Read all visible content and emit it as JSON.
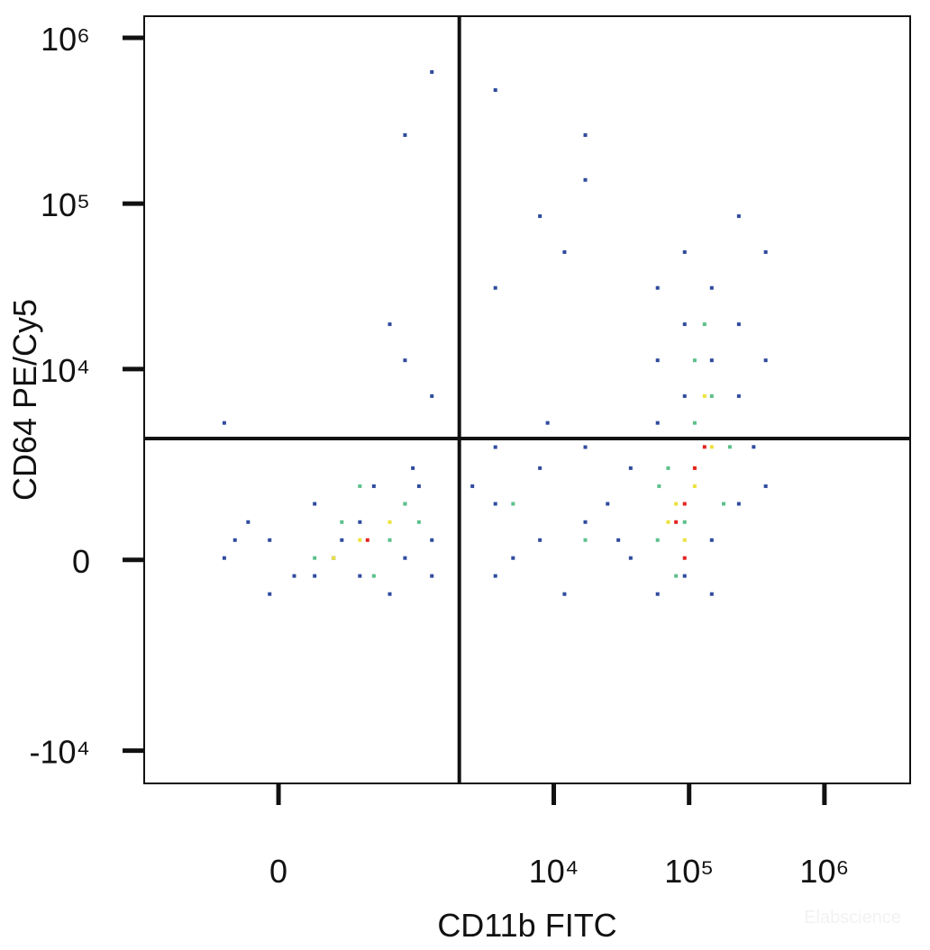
{
  "chart_data": {
    "type": "scatter",
    "xlabel": "CD11b FITC",
    "ylabel": "CD64 PE/Cy5",
    "watermark": "Elabscience",
    "xscale": "biexponential",
    "yscale": "biexponential",
    "xlim": [
      -900,
      4300000
    ],
    "ylim": [
      -15800,
      1350000
    ],
    "xticks": [
      0,
      {
        "value": 10000,
        "label": "10⁴"
      },
      {
        "value": 100000,
        "label": "10⁵"
      },
      {
        "value": 1000000,
        "label": "10⁶"
      }
    ],
    "yticks": [
      {
        "value": -10000,
        "label": "-10⁴"
      },
      0,
      {
        "value": 10000,
        "label": "10⁴"
      },
      {
        "value": 100000,
        "label": "10⁵"
      },
      {
        "value": 1000000,
        "label": "10⁶"
      }
    ],
    "quadrant": {
      "x": 2000,
      "y": 3700,
      "color": "#111111"
    },
    "series": [
      {
        "color": "#2f4b9e",
        "x": [
          -196,
          -28,
          121,
          346,
          785,
          1250,
          121,
          -28,
          346,
          785,
          240,
          600,
          1000,
          -100,
          50,
          1250,
          900,
          450,
          200,
          -150,
          3700,
          7900,
          3700,
          17100,
          7900,
          2500,
          5000,
          12000,
          25000,
          17100,
          3700,
          9000,
          30000,
          37000,
          58500,
          92700,
          147000,
          233000,
          37000,
          233000,
          147000,
          92700,
          58500,
          147000,
          233000,
          368000,
          368000,
          92700,
          233000,
          58500,
          368000,
          147000,
          58500,
          300000,
          92700,
          7900,
          17100,
          12000,
          3700,
          785,
          1250,
          785,
          3700,
          17100,
          600,
          -196,
          1250
        ],
        "y": [
          36,
          395,
          -320,
          780,
          1220,
          395,
          1220,
          -700,
          -320,
          36,
          395,
          -700,
          1720,
          780,
          -320,
          -320,
          2340,
          1720,
          36,
          395,
          1220,
          395,
          -320,
          780,
          2340,
          1720,
          36,
          -700,
          1220,
          3250,
          3250,
          4650,
          395,
          36,
          -700,
          -320,
          395,
          1220,
          2340,
          6830,
          11300,
          18700,
          31000,
          31000,
          18700,
          11300,
          51000,
          51000,
          84000,
          4650,
          1720,
          -700,
          11300,
          3260,
          6830,
          84000,
          139000,
          51000,
          31000,
          11300,
          622000,
          259000,
          484000,
          259000,
          18700,
          4650,
          6830
        ]
      },
      {
        "color": "#5cc08a",
        "x": [
          240,
          600,
          785,
          121,
          450,
          1000,
          346,
          70000,
          110000,
          180000,
          92700,
          58500,
          147000,
          110000,
          80000,
          200000,
          130000,
          5000,
          17100,
          60000
        ],
        "y": [
          780,
          395,
          1220,
          36,
          -320,
          780,
          1720,
          2340,
          4650,
          1220,
          780,
          395,
          6830,
          11300,
          -320,
          3260,
          18700,
          1220,
          395,
          1720
        ]
      },
      {
        "color": "#ece33c",
        "x": [
          346,
          600,
          200,
          110000,
          80000,
          147000,
          92700,
          130000,
          70000,
          110000
        ],
        "y": [
          395,
          780,
          36,
          2340,
          1220,
          3260,
          395,
          6830,
          780,
          1720
        ]
      },
      {
        "color": "#e2231f",
        "x": [
          92700,
          110000,
          80000,
          130000,
          92700,
          400
        ],
        "y": [
          1220,
          2340,
          780,
          3260,
          36,
          395
        ]
      }
    ]
  }
}
